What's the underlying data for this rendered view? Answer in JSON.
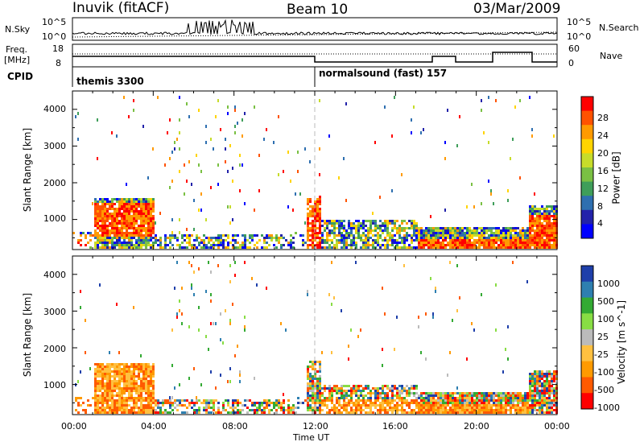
{
  "header": {
    "station": "Inuvik (fitACF)",
    "beam": "Beam 10",
    "date": "03/Mar/2009"
  },
  "top_panels": {
    "nsky_label": "N.Sky",
    "nsky_ticks": [
      "10^5",
      "10^0"
    ],
    "nsearch_label": "N.Search",
    "freq_label_1": "Freq.",
    "freq_label_2": "[MHz]",
    "freq_ticks": [
      "18",
      "8"
    ],
    "nave_label": "Nave",
    "nave_ticks": [
      "60",
      "0"
    ],
    "cpid_label": "CPID",
    "cpid_1": "themis 3300",
    "cpid_2": "normalsound (fast) 157"
  },
  "colors": {
    "power": [
      "#0000ff",
      "#2222aa",
      "#2e6fb0",
      "#3f9e5a",
      "#7ac043",
      "#c7dc2a",
      "#ffd400",
      "#ff9a00",
      "#ff5200",
      "#ff0000"
    ],
    "velocity": [
      "#ff0000",
      "#ff5a00",
      "#ff9a00",
      "#ffc040",
      "#bbbbbb",
      "#88dd44",
      "#33aa33",
      "#2e7fb0",
      "#1e3faa"
    ]
  },
  "chart_data": [
    {
      "type": "heatmap",
      "title": "Power",
      "ylabel": "Slant Range [km]",
      "colorbar_label": "Power [dB]",
      "colorbar_ticks": [
        "28",
        "24",
        "20",
        "16",
        "12",
        "8",
        "4"
      ],
      "clim": [
        0,
        32
      ],
      "ylim": [
        180,
        4500
      ],
      "y_ticks": [
        "1000",
        "2000",
        "3000",
        "4000"
      ],
      "x_range_hours": [
        0,
        24
      ]
    },
    {
      "type": "heatmap",
      "title": "Velocity",
      "ylabel": "Slant Range [km]",
      "colorbar_label": "Velocity [m s^-1]",
      "colorbar_ticks": [
        "1000",
        "500",
        "100",
        "25",
        "-25",
        "-100",
        "-500",
        "-1000"
      ],
      "ylim": [
        180,
        4500
      ],
      "y_ticks": [
        "1000",
        "2000",
        "3000",
        "4000"
      ],
      "x_ticks": [
        "00:00",
        "04:00",
        "08:00",
        "12:00",
        "16:00",
        "20:00",
        "00:00"
      ],
      "xlabel": "Time UT"
    }
  ]
}
